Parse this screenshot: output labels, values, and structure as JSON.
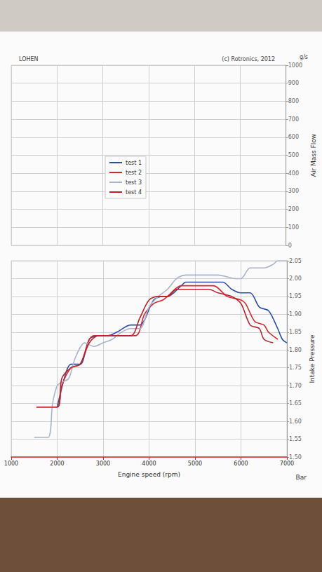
{
  "chart_data": {
    "type": "line",
    "title": "LOHEN",
    "subtitle": "(c) Rotronics, 2012",
    "x_label": "Engine speed (rpm)",
    "y_label": "Intake Pressure",
    "y_unit": "Bar",
    "y2_label": "Air Mass Flow",
    "y2_unit": "g/s",
    "xlim": [
      1000,
      7000
    ],
    "xticks": [
      1000,
      2000,
      3000,
      4000,
      5000,
      6000,
      7000
    ],
    "ylim": [
      1.5,
      2.05
    ],
    "yticks": [
      {
        "value": 1.5,
        "label": "1.50"
      },
      {
        "value": 1.55,
        "label": "1.55"
      },
      {
        "value": 1.6,
        "label": "1.60"
      },
      {
        "value": 1.65,
        "label": "1.65"
      },
      {
        "value": 1.7,
        "label": "1.70"
      },
      {
        "value": 1.75,
        "label": "1.75"
      },
      {
        "value": 1.8,
        "label": "1.80"
      },
      {
        "value": 1.85,
        "label": "1.85"
      },
      {
        "value": 1.9,
        "label": "1.90"
      },
      {
        "value": 1.95,
        "label": "1.95"
      },
      {
        "value": 2.0,
        "label": "2.00"
      },
      {
        "value": 2.05,
        "label": "2.05"
      }
    ],
    "y2lim": [
      0,
      1000
    ],
    "y2ticks": [
      0,
      100,
      200,
      300,
      400,
      500,
      600,
      700,
      800,
      900,
      1000
    ],
    "grid": true,
    "series": [
      {
        "name": "test 1",
        "color": "#2b4fa8",
        "x": [
          2000,
          2200,
          2300,
          2500,
          2700,
          2900,
          3100,
          3300,
          3600,
          3800,
          4100,
          4300,
          4400,
          4700,
          4800,
          5600,
          5800,
          6000,
          6200,
          6400,
          6600,
          6800,
          6900,
          7000
        ],
        "values": [
          1.64,
          1.74,
          1.76,
          1.76,
          1.83,
          1.84,
          1.84,
          1.85,
          1.87,
          1.87,
          1.94,
          1.95,
          1.95,
          1.98,
          1.99,
          1.99,
          1.97,
          1.96,
          1.96,
          1.92,
          1.91,
          1.86,
          1.83,
          1.82
        ]
      },
      {
        "name": "test 2",
        "color": "#d9262c",
        "x": [
          1550,
          2000,
          2100,
          2300,
          2500,
          2700,
          2800,
          3700,
          3900,
          4100,
          4300,
          4400,
          4700,
          5400,
          5700,
          6000,
          6100,
          6300,
          6500,
          6600,
          6800
        ],
        "values": [
          1.64,
          1.64,
          1.7,
          1.75,
          1.76,
          1.83,
          1.84,
          1.84,
          1.9,
          1.93,
          1.94,
          1.95,
          1.98,
          1.98,
          1.95,
          1.94,
          1.93,
          1.88,
          1.87,
          1.85,
          1.83
        ]
      },
      {
        "name": "test 3",
        "color": "#a9b4cc",
        "x": [
          1500,
          1800,
          1900,
          2000,
          2100,
          2250,
          2400,
          2600,
          2800,
          3000,
          3200,
          3400,
          3600,
          3800,
          4000,
          4200,
          4400,
          4600,
          4800,
          5000,
          5500,
          5900,
          6000,
          6200,
          6500,
          6700,
          6800,
          7000
        ],
        "values": [
          1.555,
          1.555,
          1.65,
          1.7,
          1.71,
          1.72,
          1.78,
          1.82,
          1.81,
          1.82,
          1.83,
          1.85,
          1.86,
          1.86,
          1.92,
          1.95,
          1.97,
          2.0,
          2.01,
          2.01,
          2.01,
          2.0,
          2.0,
          2.03,
          2.03,
          2.04,
          2.05,
          2.05
        ]
      },
      {
        "name": "test 4",
        "color": "#c0202a",
        "x": [
          1550,
          2000,
          2100,
          2300,
          2500,
          2700,
          2900,
          3600,
          3800,
          4000,
          4200,
          4400,
          4600,
          5300,
          5500,
          5800,
          6000,
          6200,
          6400,
          6500,
          6700
        ],
        "values": [
          1.64,
          1.64,
          1.72,
          1.75,
          1.76,
          1.82,
          1.84,
          1.84,
          1.89,
          1.94,
          1.95,
          1.95,
          1.97,
          1.97,
          1.96,
          1.95,
          1.93,
          1.87,
          1.86,
          1.83,
          1.82
        ]
      }
    ]
  }
}
